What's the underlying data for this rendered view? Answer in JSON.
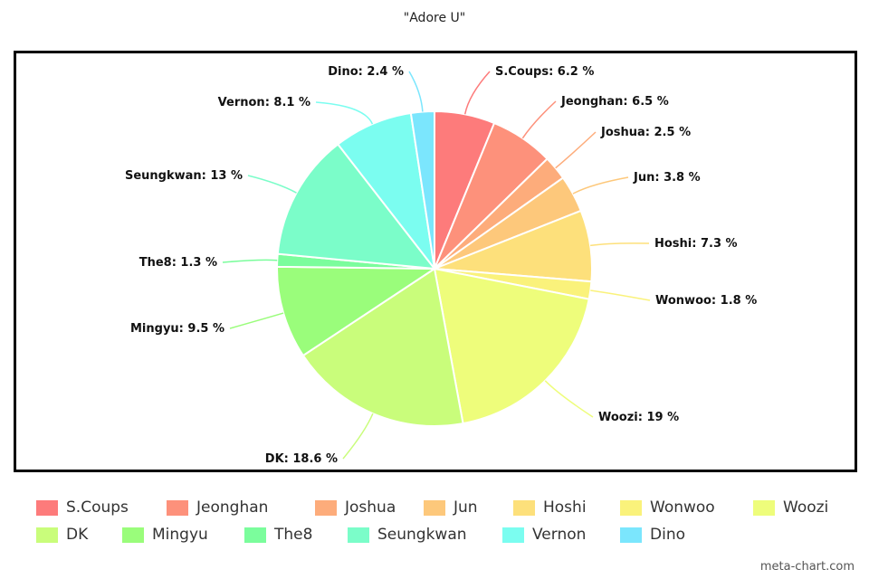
{
  "chart_data": {
    "type": "pie",
    "title": "\"Adore U\"",
    "categories": [
      "S.Coups",
      "Jeonghan",
      "Joshua",
      "Jun",
      "Hoshi",
      "Wonwoo",
      "Woozi",
      "DK",
      "Mingyu",
      "The8",
      "Seungkwan",
      "Vernon",
      "Dino"
    ],
    "values": [
      6.2,
      6.5,
      2.5,
      3.8,
      7.3,
      1.8,
      19,
      18.6,
      9.5,
      1.3,
      13,
      8.1,
      2.4
    ],
    "labels": [
      "S.Coups: 6.2 %",
      "Jeonghan: 6.5 %",
      "Joshua: 2.5 %",
      "Jun: 3.8 %",
      "Hoshi: 7.3 %",
      "Wonwoo: 1.8 %",
      "Woozi: 19 %",
      "DK: 18.6 %",
      "Mingyu: 9.5 %",
      "The8: 1.3 %",
      "Seungkwan: 13 %",
      "Vernon: 8.1 %",
      "Dino: 2.4 %"
    ],
    "colors": [
      "#fd7b7b",
      "#fd917b",
      "#fdac7b",
      "#fdc87b",
      "#fde07b",
      "#faf27b",
      "#eefd7b",
      "#c9fd7b",
      "#9afd7b",
      "#7bfd9c",
      "#7bfdc9",
      "#7bfdf0",
      "#7be6fd"
    ],
    "legend_position": "bottom"
  },
  "watermark": "meta-chart.com"
}
